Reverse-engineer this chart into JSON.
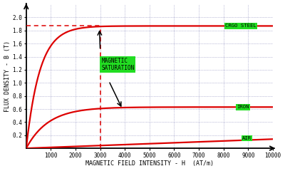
{
  "xlabel": "MAGNETIC FIELD INTENSITY - H  (AT/m)",
  "ylabel": "FLUX DENSITY - B (T)",
  "xlim": [
    0,
    10000
  ],
  "ylim": [
    0,
    2.2
  ],
  "xticks": [
    1000,
    2000,
    3000,
    4000,
    5000,
    6000,
    7000,
    8000,
    9000,
    10000
  ],
  "yticks": [
    0.2,
    0.4,
    0.6,
    0.8,
    1.0,
    1.2,
    1.4,
    1.6,
    1.8,
    2.0
  ],
  "bg_color": "#ffffff",
  "grid_color": "#8888bb",
  "curve_color": "#dd0000",
  "label_crgo": "CRGO STEEL",
  "label_iron": "IRON",
  "label_air": "AIR",
  "annotation_text": "MAGNETIC\nSATURATION",
  "sat_x": 3000,
  "crgo_sat": 1.87,
  "crgo_k": 550,
  "iron_sat": 0.63,
  "iron_k": 900,
  "air_slope": 1.4e-05,
  "dashed_y": 1.87
}
